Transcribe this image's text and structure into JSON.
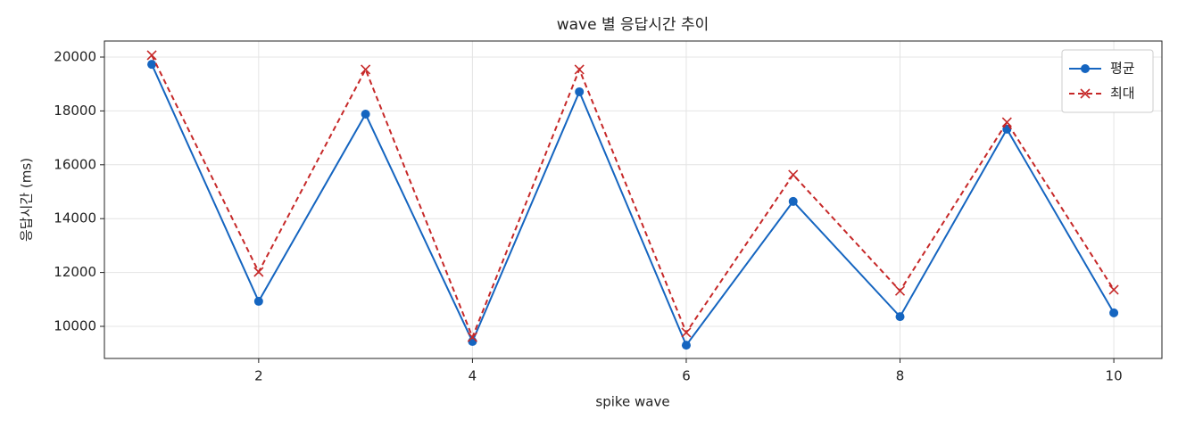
{
  "chart_data": {
    "type": "line",
    "title": "wave 별 응답시간 추이",
    "x_label": "spike wave",
    "y_label": "응답시간 (ms)",
    "x": [
      1,
      2,
      3,
      4,
      5,
      6,
      7,
      8,
      9,
      10
    ],
    "series": [
      {
        "name": "평균",
        "color": "#1565c0",
        "marker": "circle",
        "dashed": false,
        "values": [
          19730,
          10930,
          17880,
          9440,
          18710,
          9300,
          14640,
          10360,
          17320,
          10500
        ]
      },
      {
        "name": "최대",
        "color": "#c62828",
        "marker": "cross",
        "dashed": true,
        "values": [
          20070,
          12020,
          19540,
          9600,
          19540,
          9770,
          15630,
          11320,
          17580,
          11360
        ]
      }
    ],
    "xlim": [
      0.557,
      10.45
    ],
    "xticks": [
      2,
      4,
      6,
      8,
      10
    ],
    "ylim": [
      8808,
      20596
    ],
    "yticks": [
      10000,
      12000,
      14000,
      16000,
      18000,
      20000
    ],
    "grid": true,
    "legend": "upper right"
  }
}
